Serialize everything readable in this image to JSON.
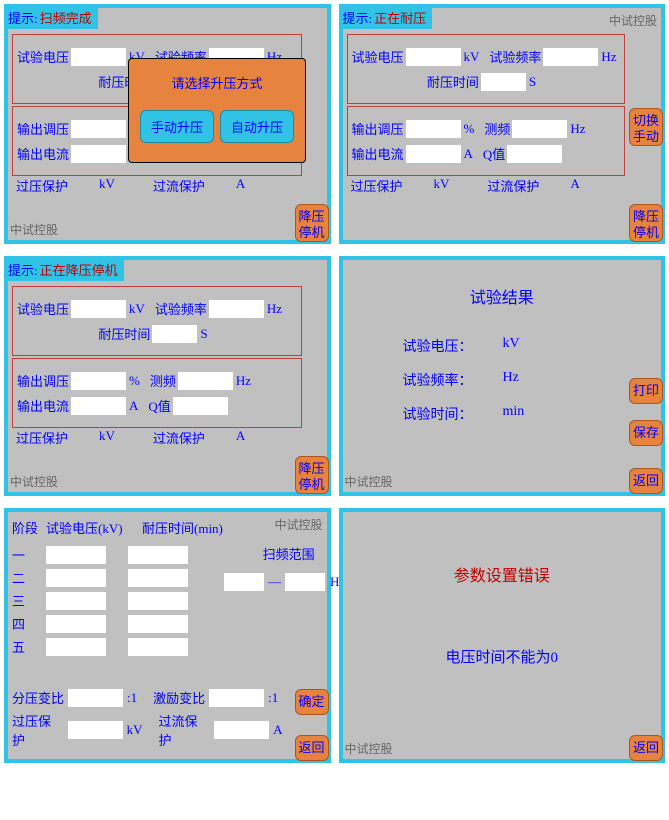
{
  "colors": {
    "panel_bg": "#c0c0c0",
    "panel_border": "#31c3e6",
    "text_blue": "#0000ff",
    "text_red": "#c00000",
    "btn_orange": "#e6833f",
    "btn_teal": "#31c3e6",
    "input_bg": "#ffffff",
    "group_border": "#c04040",
    "footer_gray": "#666666"
  },
  "common": {
    "hint_label": "提示:",
    "footer": "中试控股",
    "btn_stop": "降压\n停机",
    "btn_switch_manual": "切换\n手动",
    "btn_print": "打印",
    "btn_save": "保存",
    "btn_return": "返回",
    "btn_confirm": "确定"
  },
  "labels": {
    "test_voltage": "试验电压",
    "test_freq": "试验频率",
    "withstand_time": "耐压时间",
    "output_adjust": "输出调压",
    "output_current": "输出电流",
    "meas_freq": "测频",
    "q_value": "Q值",
    "ov_protect": "过压保护",
    "oc_protect": "过流保护",
    "unit_kv": "kV",
    "unit_hz": "Hz",
    "unit_s": "S",
    "unit_a": "A",
    "unit_pct": "%",
    "unit_min": "min"
  },
  "p1": {
    "hint": "扫频完成",
    "modal_title": "请选择升压方式",
    "btn_manual": "手动升压",
    "btn_auto": "自动升压"
  },
  "p2": {
    "hint": "正在耐压"
  },
  "p3": {
    "hint": "正在降压停机"
  },
  "p4": {
    "title": "试验结果",
    "r1": "试验电压：",
    "r2": "试验频率：",
    "r3": "试验时间："
  },
  "p5": {
    "col_stage": "阶段",
    "col_voltage": "试验电压(kV)",
    "col_time": "耐压时间(min)",
    "scan_range": "扫频范围",
    "dash": "—",
    "stages": [
      "一",
      "二",
      "三",
      "四",
      "五"
    ],
    "ratio_div": "分压变比",
    "ratio_exc": "激励变比",
    "ratio_suffix": ":1",
    "ov_protect": "过压保护",
    "oc_protect": "过流保护"
  },
  "p6": {
    "title": "参数设置错误",
    "msg": "电压时间不能为0"
  }
}
